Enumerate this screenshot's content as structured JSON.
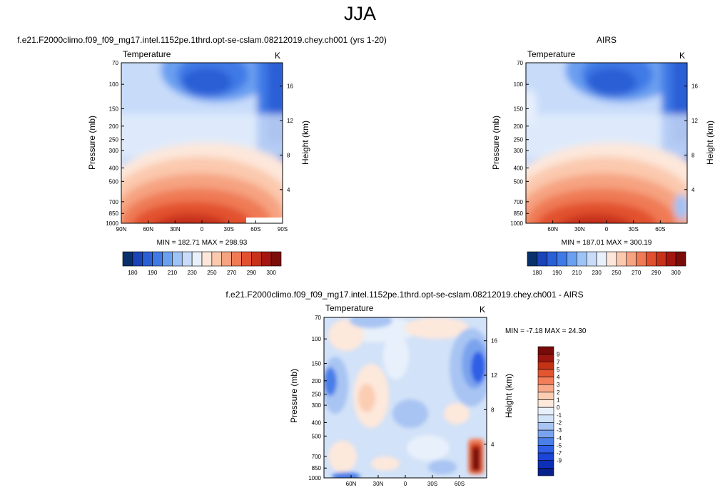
{
  "page_title": "JJA",
  "colors": {
    "abs_scale": [
      "#08306b",
      "#1a44b8",
      "#2a5fd6",
      "#3f7ae6",
      "#6b9ff0",
      "#9ec3f7",
      "#c8dcfa",
      "#e7f0fb",
      "#fde7da",
      "#fbc9ae",
      "#f6a381",
      "#ef7a55",
      "#e2512f",
      "#c7321b",
      "#a31710",
      "#7a0d0a"
    ],
    "diff_scale": [
      "#08208a",
      "#0d2fb8",
      "#1a45d6",
      "#2e5fe6",
      "#4a7ee8",
      "#7aa3ee",
      "#a8c4f3",
      "#d2e2f8",
      "#e8f0fb",
      "#fde8dc",
      "#fbcdb3",
      "#f8aa8a",
      "#f27f5a",
      "#e25630",
      "#c53317",
      "#9c1610",
      "#760b0a"
    ]
  },
  "chart_data": [
    {
      "type": "heatmap",
      "title": "f.e21.F2000climo.f09_f09_mg17.intel.1152pe.1thrd.opt-se-cslam.08212019.chey.ch001 (yrs 1-20)",
      "left_label": "Temperature",
      "right_label": "K",
      "ylabel": "Pressure (mb)",
      "y2label": "Height (km)",
      "x_ticks": [
        "90N",
        "60N",
        "30N",
        "0",
        "30S",
        "60S",
        "90S"
      ],
      "x_tick_values": [
        90,
        60,
        30,
        0,
        -30,
        -60,
        -90
      ],
      "xlim": [
        90,
        -90
      ],
      "y_ticks": [
        "70",
        "100",
        "150",
        "200",
        "250",
        "300",
        "400",
        "500",
        "700",
        "850",
        "1000"
      ],
      "y_tick_values": [
        70,
        100,
        150,
        200,
        250,
        300,
        400,
        500,
        700,
        850,
        1000
      ],
      "ylim": [
        1000,
        70
      ],
      "y_scale": "log",
      "y2_ticks": [
        "4",
        "8",
        "12",
        "16"
      ],
      "y2_tick_values": [
        4,
        8,
        12,
        16
      ],
      "stats": "MIN = 182.71   MAX = 298.93",
      "min": 182.71,
      "max": 298.93,
      "colorbar": {
        "levels": [
          175,
          180,
          185,
          190,
          200,
          210,
          220,
          230,
          240,
          250,
          260,
          270,
          280,
          290,
          295,
          300
        ],
        "tick_labels": [
          "180",
          "190",
          "210",
          "230",
          "250",
          "270",
          "290",
          "300"
        ]
      }
    },
    {
      "type": "heatmap",
      "title": "AIRS",
      "left_label": "Temperature",
      "right_label": "K",
      "ylabel": "Pressure (mb)",
      "y2label": "Height (km)",
      "x_ticks": [
        "60N",
        "30N",
        "0",
        "30S",
        "60S"
      ],
      "x_tick_values": [
        60,
        30,
        0,
        -30,
        -60
      ],
      "xlim": [
        90,
        -90
      ],
      "y_ticks": [
        "70",
        "100",
        "150",
        "200",
        "250",
        "300",
        "400",
        "500",
        "700",
        "850",
        "1000"
      ],
      "y_tick_values": [
        70,
        100,
        150,
        200,
        250,
        300,
        400,
        500,
        700,
        850,
        1000
      ],
      "ylim": [
        1000,
        70
      ],
      "y_scale": "log",
      "y2_ticks": [
        "4",
        "8",
        "12",
        "16"
      ],
      "y2_tick_values": [
        4,
        8,
        12,
        16
      ],
      "stats": "MIN = 187.01   MAX = 300.19",
      "min": 187.01,
      "max": 300.19,
      "colorbar": {
        "levels": [
          175,
          180,
          185,
          190,
          200,
          210,
          220,
          230,
          240,
          250,
          260,
          270,
          280,
          290,
          295,
          300
        ],
        "tick_labels": [
          "180",
          "190",
          "210",
          "230",
          "250",
          "270",
          "290",
          "300"
        ]
      }
    },
    {
      "type": "heatmap",
      "title": "f.e21.F2000climo.f09_f09_mg17.intel.1152pe.1thrd.opt-se-cslam.08212019.chey.ch001 - AIRS",
      "left_label": "Temperature",
      "right_label": "K",
      "ylabel": "Pressure (mb)",
      "y2label": "Height (km)",
      "x_ticks": [
        "60N",
        "30N",
        "0",
        "30S",
        "60S"
      ],
      "x_tick_values": [
        60,
        30,
        0,
        -30,
        -60
      ],
      "xlim": [
        90,
        -90
      ],
      "y_ticks": [
        "70",
        "100",
        "150",
        "200",
        "250",
        "300",
        "400",
        "500",
        "700",
        "850",
        "1000"
      ],
      "y_tick_values": [
        70,
        100,
        150,
        200,
        250,
        300,
        400,
        500,
        700,
        850,
        1000
      ],
      "ylim": [
        1000,
        70
      ],
      "y_scale": "log",
      "y2_ticks": [
        "4",
        "8",
        "12",
        "16"
      ],
      "y2_tick_values": [
        4,
        8,
        12,
        16
      ],
      "stats": "MIN =  -7.18   MAX =  24.30",
      "min": -7.18,
      "max": 24.3,
      "colorbar": {
        "orientation": "vertical",
        "tick_labels": [
          "-9",
          "-7",
          "-5",
          "-4",
          "-3",
          "-2",
          "-1",
          "0",
          "1",
          "2",
          "3",
          "4",
          "5",
          "7",
          "9"
        ]
      }
    }
  ]
}
